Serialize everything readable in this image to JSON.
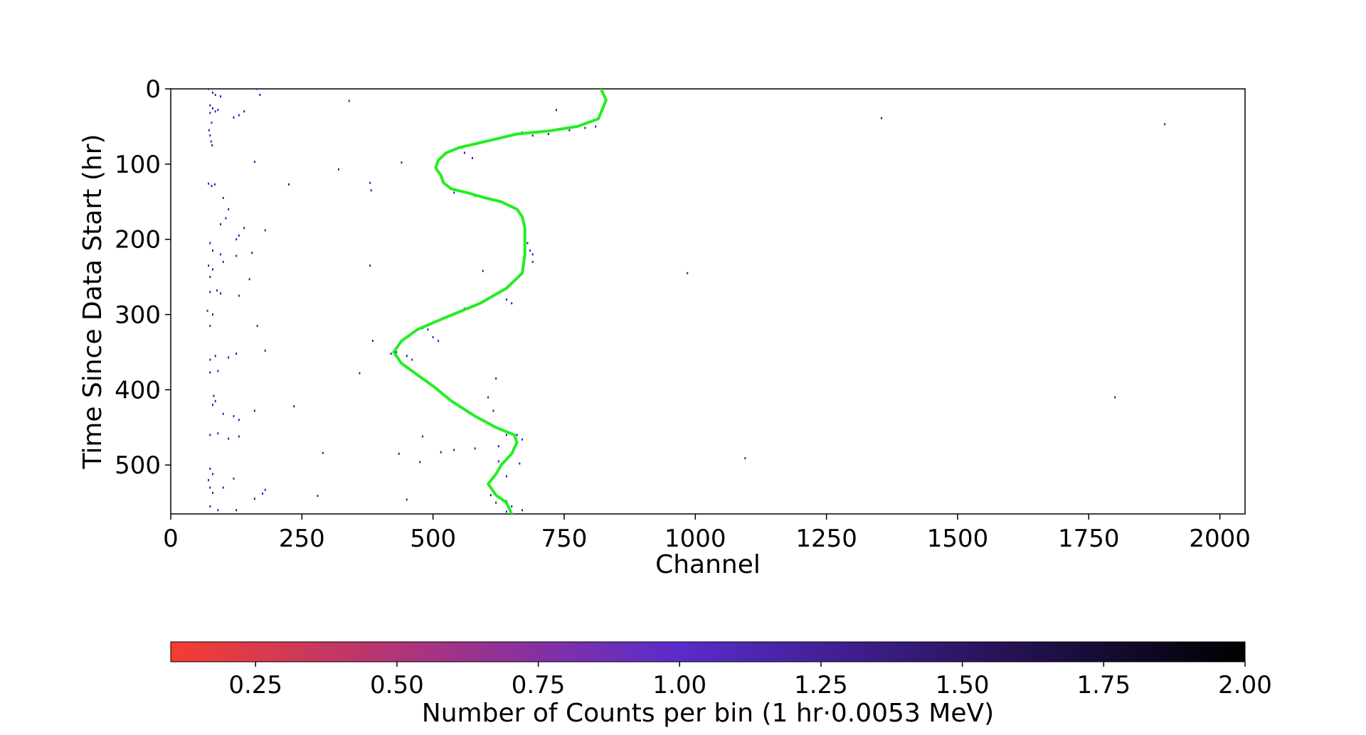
{
  "chart_data": {
    "type": "scatter",
    "title": "",
    "xlabel": "Channel",
    "ylabel": "Time Since Data Start (hr)",
    "xlim": [
      0,
      2048
    ],
    "ylim": [
      0,
      565
    ],
    "y_inverted": true,
    "x_ticks": [
      0,
      250,
      500,
      750,
      1000,
      1250,
      1500,
      1750,
      2000
    ],
    "y_ticks": [
      0,
      100,
      200,
      300,
      400,
      500
    ],
    "grid": false,
    "series": [
      {
        "type": "scatter",
        "color": "#2b1ba8",
        "points": [
          [
            72,
            0
          ],
          [
            80,
            5
          ],
          [
            85,
            8
          ],
          [
            95,
            10
          ],
          [
            75,
            22
          ],
          [
            80,
            26
          ],
          [
            90,
            28
          ],
          [
            75,
            32
          ],
          [
            85,
            30
          ],
          [
            130,
            35
          ],
          [
            140,
            30
          ],
          [
            120,
            38
          ],
          [
            78,
            45
          ],
          [
            73,
            55
          ],
          [
            75,
            62
          ],
          [
            77,
            70
          ],
          [
            79,
            75
          ],
          [
            165,
            0
          ],
          [
            170,
            8
          ],
          [
            340,
            16
          ],
          [
            735,
            28
          ],
          [
            1355,
            39
          ],
          [
            1895,
            47
          ],
          [
            670,
            58
          ],
          [
            690,
            62
          ],
          [
            700,
            58
          ],
          [
            720,
            60
          ],
          [
            760,
            55
          ],
          [
            790,
            52
          ],
          [
            810,
            50
          ],
          [
            160,
            97
          ],
          [
            320,
            107
          ],
          [
            440,
            98
          ],
          [
            555,
            78
          ],
          [
            560,
            85
          ],
          [
            575,
            92
          ],
          [
            72,
            126
          ],
          [
            78,
            129
          ],
          [
            84,
            127
          ],
          [
            225,
            127
          ],
          [
            380,
            125
          ],
          [
            382,
            135
          ],
          [
            540,
            138
          ],
          [
            580,
            142
          ],
          [
            100,
            145
          ],
          [
            110,
            160
          ],
          [
            105,
            172
          ],
          [
            95,
            180
          ],
          [
            140,
            185
          ],
          [
            180,
            188
          ],
          [
            130,
            195
          ],
          [
            125,
            200
          ],
          [
            75,
            205
          ],
          [
            80,
            215
          ],
          [
            95,
            220
          ],
          [
            100,
            230
          ],
          [
            125,
            222
          ],
          [
            155,
            218
          ],
          [
            680,
            205
          ],
          [
            685,
            215
          ],
          [
            690,
            220
          ],
          [
            690,
            230
          ],
          [
            72,
            235
          ],
          [
            80,
            240
          ],
          [
            75,
            250
          ],
          [
            75,
            270
          ],
          [
            88,
            268
          ],
          [
            95,
            272
          ],
          [
            130,
            275
          ],
          [
            150,
            253
          ],
          [
            380,
            235
          ],
          [
            595,
            242
          ],
          [
            985,
            245
          ],
          [
            640,
            280
          ],
          [
            650,
            285
          ],
          [
            560,
            292
          ],
          [
            70,
            295
          ],
          [
            80,
            300
          ],
          [
            75,
            315
          ],
          [
            165,
            315
          ],
          [
            480,
            318
          ],
          [
            490,
            320
          ],
          [
            500,
            330
          ],
          [
            510,
            335
          ],
          [
            385,
            335
          ],
          [
            420,
            352
          ],
          [
            430,
            350
          ],
          [
            450,
            355
          ],
          [
            460,
            360
          ],
          [
            75,
            360
          ],
          [
            85,
            355
          ],
          [
            110,
            357
          ],
          [
            125,
            352
          ],
          [
            180,
            348
          ],
          [
            75,
            377
          ],
          [
            90,
            375
          ],
          [
            360,
            378
          ],
          [
            620,
            385
          ],
          [
            1800,
            410
          ],
          [
            82,
            408
          ],
          [
            85,
            415
          ],
          [
            80,
            420
          ],
          [
            235,
            422
          ],
          [
            160,
            428
          ],
          [
            100,
            432
          ],
          [
            120,
            435
          ],
          [
            130,
            440
          ],
          [
            605,
            410
          ],
          [
            615,
            428
          ],
          [
            640,
            460
          ],
          [
            660,
            460
          ],
          [
            670,
            466
          ],
          [
            75,
            460
          ],
          [
            90,
            458
          ],
          [
            110,
            465
          ],
          [
            130,
            462
          ],
          [
            480,
            462
          ],
          [
            540,
            480
          ],
          [
            580,
            478
          ],
          [
            625,
            475
          ],
          [
            290,
            484
          ],
          [
            435,
            485
          ],
          [
            515,
            483
          ],
          [
            1095,
            491
          ],
          [
            475,
            496
          ],
          [
            625,
            495
          ],
          [
            665,
            498
          ],
          [
            75,
            505
          ],
          [
            80,
            512
          ],
          [
            72,
            520
          ],
          [
            75,
            530
          ],
          [
            80,
            537
          ],
          [
            100,
            530
          ],
          [
            120,
            518
          ],
          [
            640,
            515
          ],
          [
            180,
            533
          ],
          [
            280,
            541
          ],
          [
            450,
            546
          ],
          [
            610,
            540
          ],
          [
            620,
            550
          ],
          [
            640,
            548
          ],
          [
            650,
            555
          ],
          [
            75,
            555
          ],
          [
            90,
            560
          ],
          [
            125,
            560
          ],
          [
            160,
            545
          ],
          [
            175,
            538
          ],
          [
            640,
            562
          ],
          [
            670,
            560
          ]
        ]
      },
      {
        "type": "line",
        "color": "#22ee22",
        "points": [
          [
            820,
            0
          ],
          [
            830,
            15
          ],
          [
            815,
            40
          ],
          [
            775,
            50
          ],
          [
            720,
            56
          ],
          [
            660,
            60
          ],
          [
            600,
            70
          ],
          [
            550,
            78
          ],
          [
            525,
            85
          ],
          [
            510,
            95
          ],
          [
            505,
            105
          ],
          [
            515,
            115
          ],
          [
            520,
            125
          ],
          [
            535,
            133
          ],
          [
            565,
            138
          ],
          [
            600,
            145
          ],
          [
            630,
            150
          ],
          [
            660,
            160
          ],
          [
            670,
            170
          ],
          [
            675,
            185
          ],
          [
            675,
            200
          ],
          [
            675,
            220
          ],
          [
            670,
            245
          ],
          [
            640,
            265
          ],
          [
            590,
            285
          ],
          [
            520,
            305
          ],
          [
            470,
            320
          ],
          [
            440,
            335
          ],
          [
            425,
            350
          ],
          [
            440,
            365
          ],
          [
            470,
            380
          ],
          [
            500,
            395
          ],
          [
            535,
            415
          ],
          [
            580,
            435
          ],
          [
            620,
            450
          ],
          [
            655,
            460
          ],
          [
            660,
            470
          ],
          [
            650,
            485
          ],
          [
            630,
            500
          ],
          [
            620,
            512
          ],
          [
            605,
            525
          ],
          [
            620,
            540
          ],
          [
            640,
            550
          ],
          [
            650,
            565
          ]
        ]
      }
    ],
    "colorbar": {
      "label": "Number of Counts per bin (1 hr·0.0053 MeV)",
      "min": 0.1,
      "max": 2.0,
      "ticks": [
        "0.25",
        "0.50",
        "0.75",
        "1.00",
        "1.25",
        "1.50",
        "1.75",
        "2.00"
      ],
      "tick_values": [
        0.25,
        0.5,
        0.75,
        1.0,
        1.25,
        1.5,
        1.75,
        2.0
      ],
      "colors": [
        "#f53d31",
        "#5b2ccc",
        "#000000"
      ]
    }
  }
}
